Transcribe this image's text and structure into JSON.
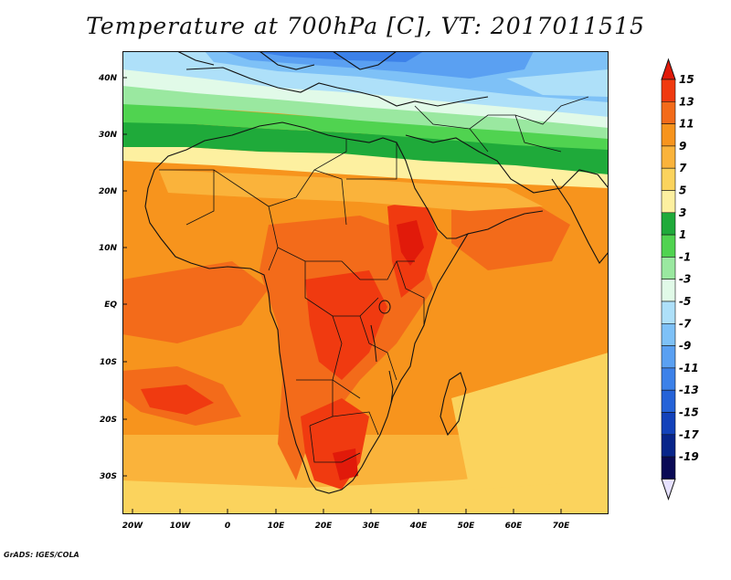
{
  "title": "Temperature at 700hPa [C], VT: 2017011515",
  "credit": "GrADS: IGES/COLA",
  "map": {
    "variable": "Temperature at 700hPa",
    "units": "C",
    "valid_time": "2017011515",
    "lon_range": [
      -22,
      80
    ],
    "lat_range": [
      -37,
      45
    ],
    "lat_ticks": [
      "40N",
      "30N",
      "20N",
      "10N",
      "EQ",
      "10S",
      "20S",
      "30S"
    ],
    "lon_ticks": [
      "20W",
      "10W",
      "0",
      "10E",
      "20E",
      "30E",
      "40E",
      "50E",
      "60E",
      "70E"
    ]
  },
  "colorbar": {
    "labels": [
      "15",
      "13",
      "11",
      "9",
      "7",
      "5",
      "3",
      "1",
      "-1",
      "-3",
      "-5",
      "-7",
      "-9",
      "-11",
      "-13",
      "-15",
      "-17",
      "-19"
    ],
    "colors": [
      "#e11a0a",
      "#f03a10",
      "#f36b1a",
      "#f7941d",
      "#fab33b",
      "#fbd35d",
      "#fdf0a0",
      "#1faa3a",
      "#50d350",
      "#9ae8a0",
      "#e1fae8",
      "#aee0f9",
      "#7ec1f7",
      "#5aa0f2",
      "#3c81e9",
      "#2563d8",
      "#1342ba",
      "#08258a",
      "#0a0a55",
      "#e6e1ff"
    ]
  }
}
